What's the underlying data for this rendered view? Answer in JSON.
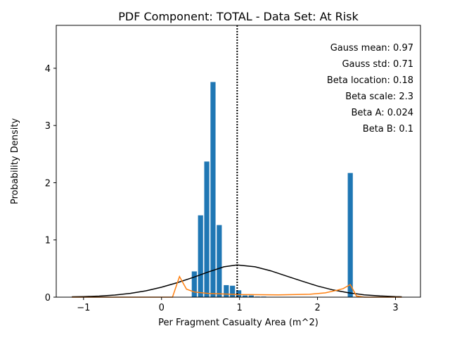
{
  "chart_data": {
    "type": "bar",
    "title": "PDF Component: TOTAL - Data Set: At Risk",
    "xlabel": "Per Fragment Casualty Area (m^2)",
    "ylabel": "Probability Density",
    "xlim": [
      -1.35,
      3.32
    ],
    "ylim": [
      0,
      4.75
    ],
    "xticks": [
      -1,
      0,
      1,
      2,
      3
    ],
    "yticks": [
      0,
      1,
      2,
      3,
      4
    ],
    "bar_width": 0.065,
    "bars": {
      "color": "#1f77b4",
      "x": [
        0.42,
        0.5,
        0.58,
        0.66,
        0.74,
        0.83,
        0.91,
        0.99,
        1.07,
        1.15,
        1.23,
        1.31,
        2.42
      ],
      "values": [
        0.45,
        1.43,
        2.37,
        3.76,
        1.26,
        0.21,
        0.2,
        0.12,
        0.03,
        0.03,
        0.01,
        0.01,
        2.17
      ]
    },
    "mean_line_x": 0.97,
    "series": [
      {
        "color": "#000000",
        "x": [
          -1.15,
          -1.0,
          -0.8,
          -0.6,
          -0.4,
          -0.2,
          0.0,
          0.2,
          0.4,
          0.6,
          0.8,
          0.97,
          1.2,
          1.4,
          1.6,
          1.8,
          2.0,
          2.2,
          2.4,
          2.6,
          2.8,
          3.0,
          3.08
        ],
        "values": [
          0.006,
          0.01,
          0.019,
          0.037,
          0.066,
          0.111,
          0.173,
          0.252,
          0.342,
          0.44,
          0.53,
          0.562,
          0.53,
          0.46,
          0.37,
          0.28,
          0.195,
          0.125,
          0.075,
          0.041,
          0.021,
          0.009,
          0.006
        ]
      },
      {
        "color": "#ff7f0e",
        "x": [
          -1.15,
          0.0,
          0.14,
          0.23,
          0.32,
          0.42,
          0.6,
          1.0,
          1.5,
          1.9,
          2.1,
          2.25,
          2.33,
          2.42,
          2.5,
          2.6,
          3.08
        ],
        "values": [
          0.0,
          0.0,
          0.0,
          0.36,
          0.14,
          0.09,
          0.065,
          0.045,
          0.04,
          0.05,
          0.075,
          0.12,
          0.15,
          0.22,
          0.02,
          0.0,
          0.0
        ]
      }
    ],
    "annotations": [
      "Gauss mean: 0.97",
      "Gauss std: 0.71",
      "Beta location: 0.18",
      "Beta scale: 2.3",
      "Beta A: 0.024",
      "Beta B: 0.1"
    ]
  }
}
